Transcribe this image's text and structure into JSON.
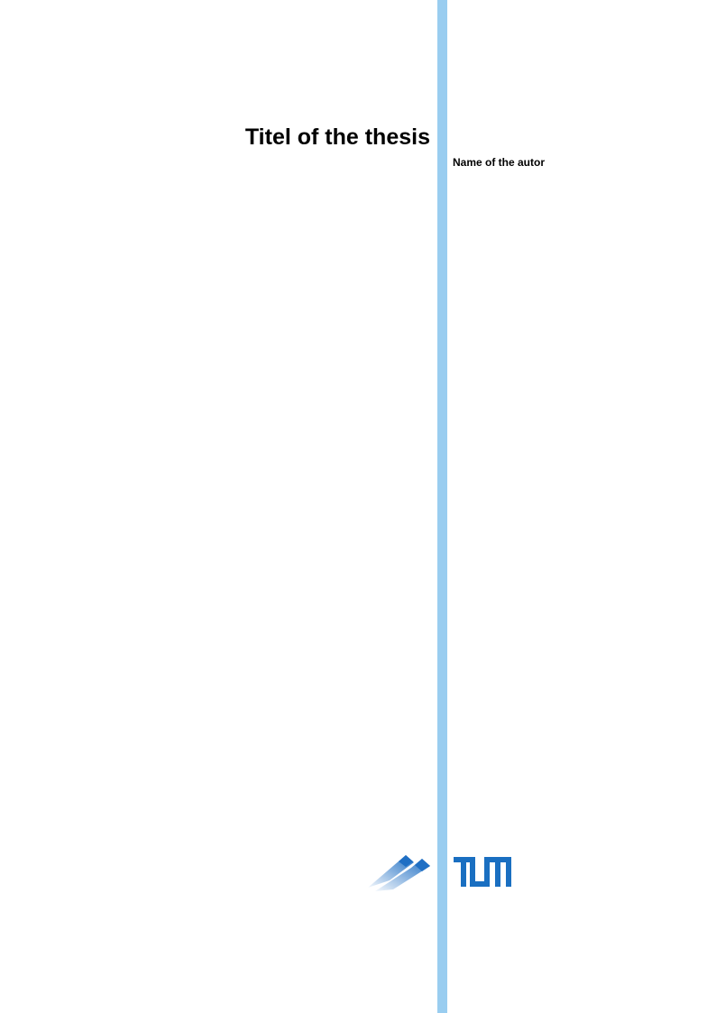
{
  "document": {
    "title": "Titel of the thesis",
    "author": "Name of the autor"
  },
  "logos": {
    "faculty_logo": "faculty-parallelogram-logo",
    "university_logo": "TUM"
  },
  "colors": {
    "sidebar_bar": "#99cdf0",
    "tum_blue": "#0065bd",
    "faculty_logo_blue": "#2a78c8"
  }
}
